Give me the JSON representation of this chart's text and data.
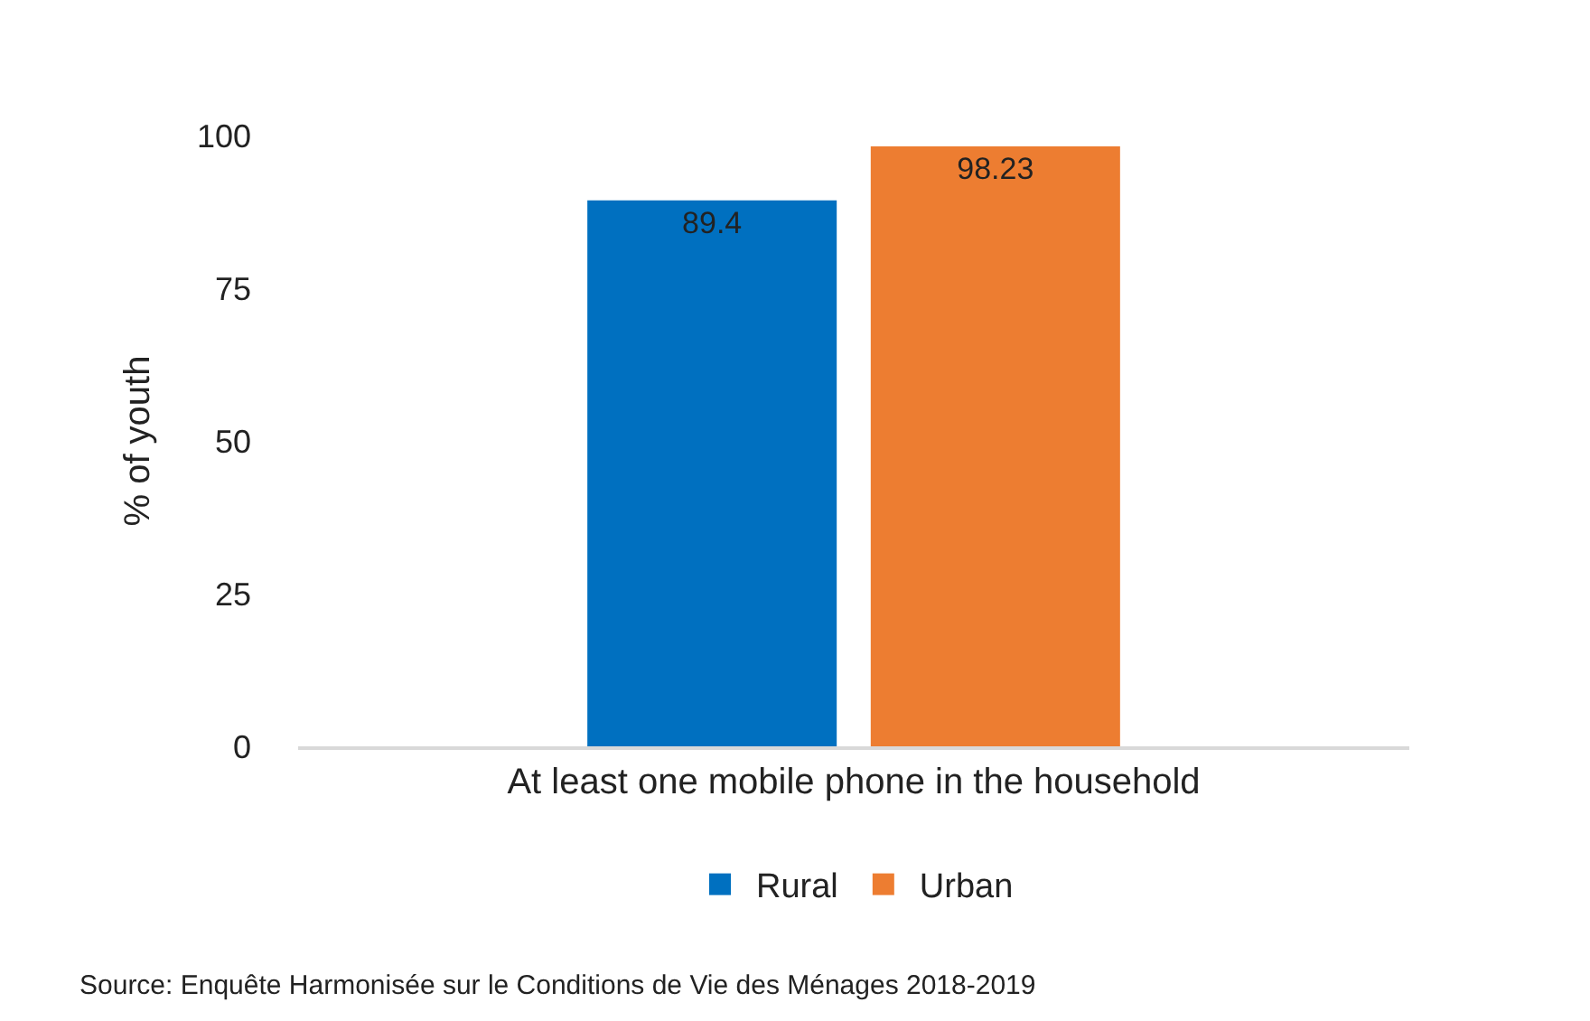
{
  "chart_data": {
    "type": "bar",
    "ylabel": "% of youth",
    "categories": [
      "At least one mobile phone in the household"
    ],
    "series": [
      {
        "name": "Rural",
        "color": "#0070c0",
        "values": [
          89.4
        ]
      },
      {
        "name": "Urban",
        "color": "#ed7d31",
        "values": [
          98.23
        ]
      }
    ],
    "ylim": [
      0,
      100
    ],
    "yticks": [
      0,
      25,
      50,
      75,
      100
    ],
    "grid": false,
    "legend": "bottom",
    "data_labels": true,
    "annotations": [
      "Source: Enquête Harmonisée sur le Conditions de Vie des Ménages 2018-2019"
    ]
  }
}
